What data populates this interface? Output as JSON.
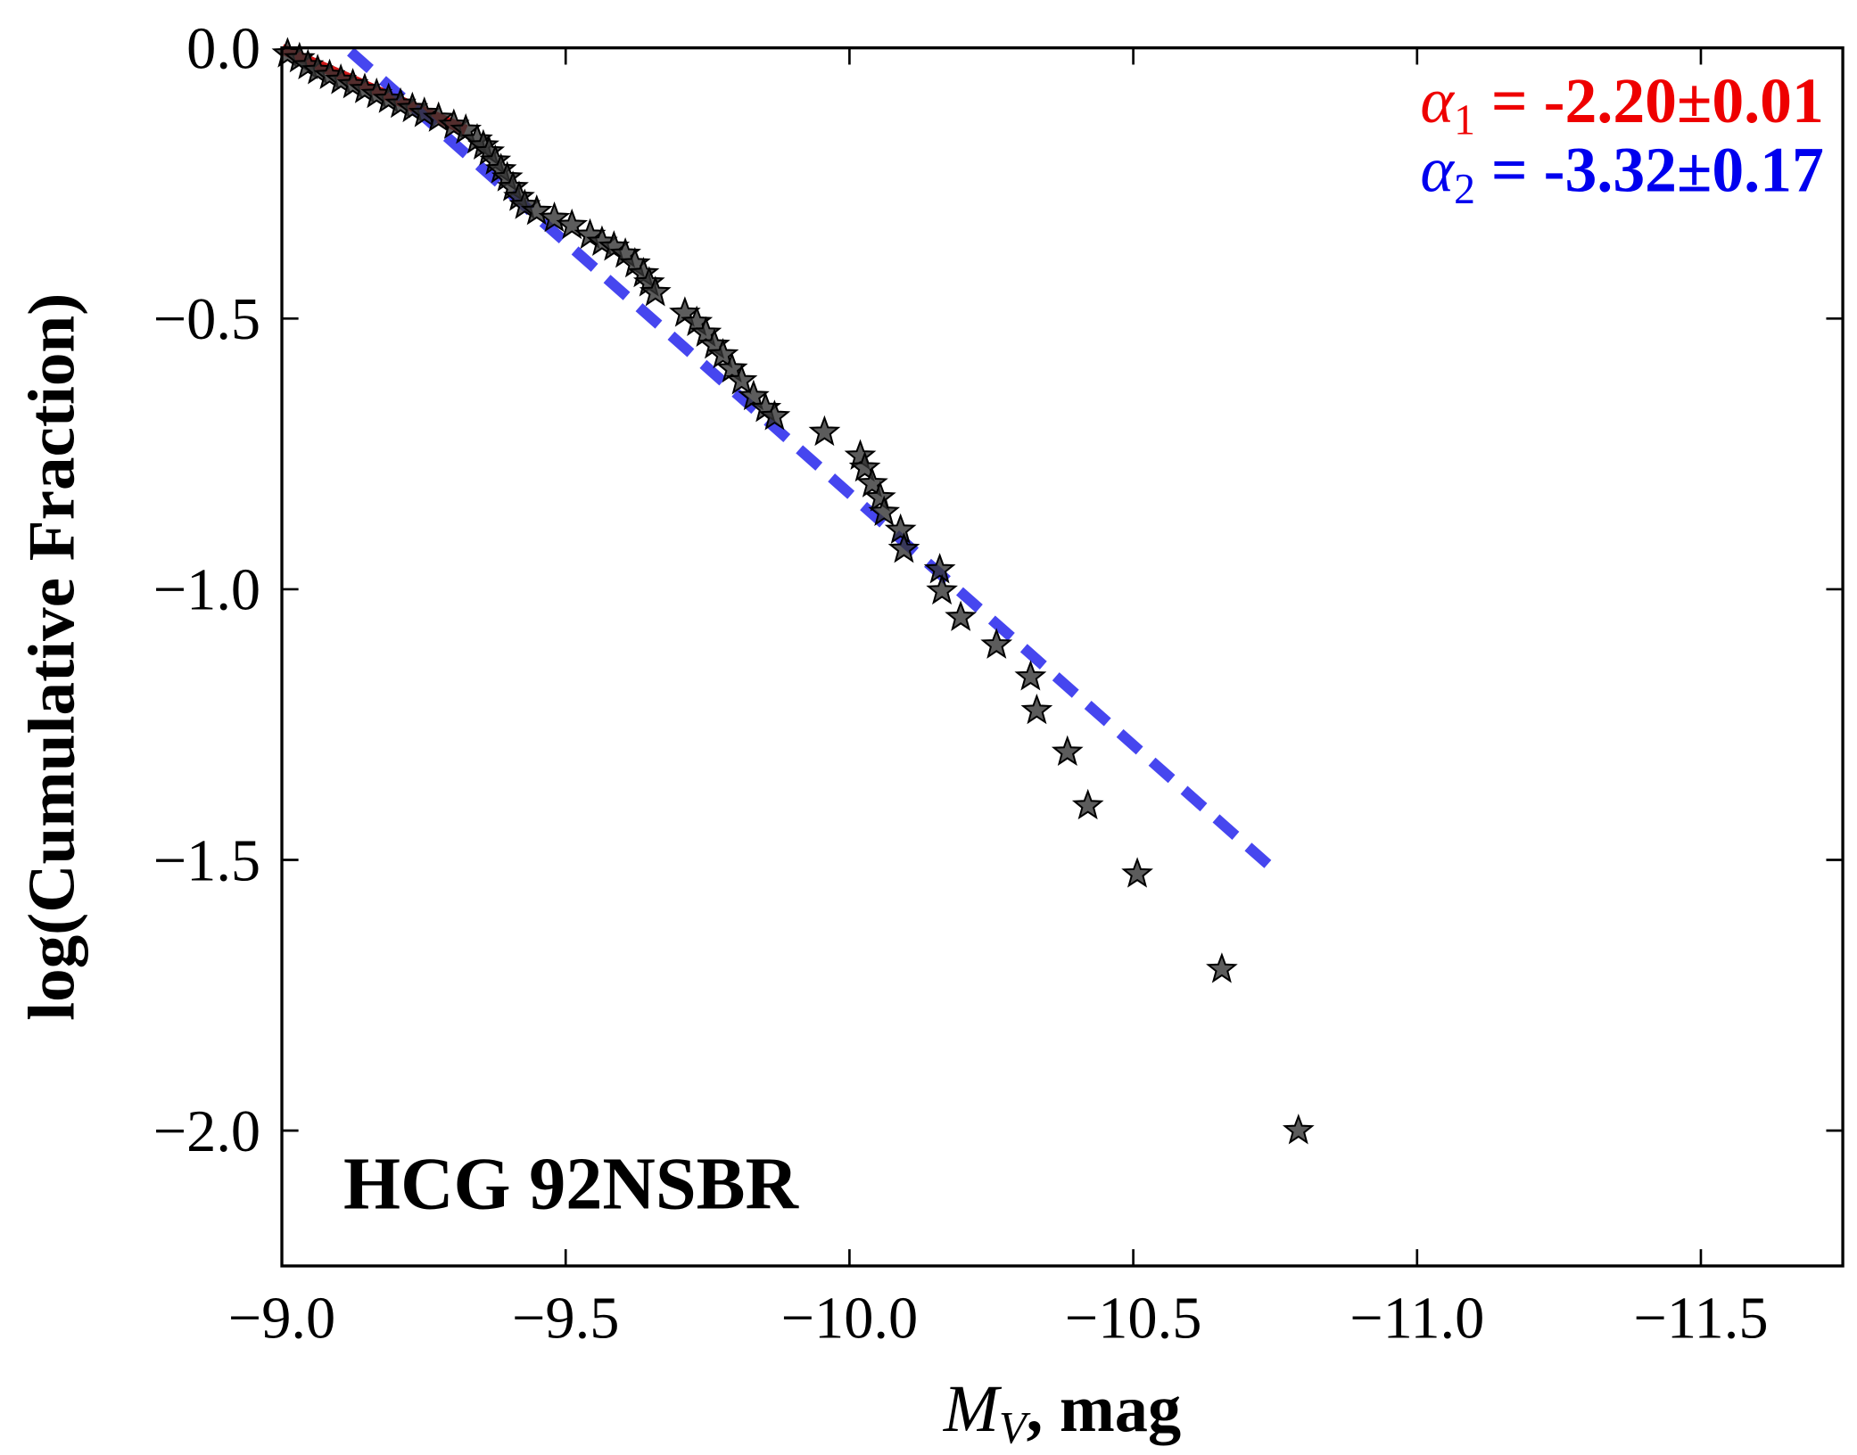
{
  "chart_data": {
    "type": "scatter",
    "xlabel": {
      "symbol": "M",
      "subscript": "V",
      "text": ", mag"
    },
    "ylabel": "log(Cumulative Fraction)",
    "label": "HCG 92NSBR",
    "xlim": [
      -9.0,
      -11.75
    ],
    "ylim": [
      0.0,
      -2.25
    ],
    "xticks": [
      {
        "value": -9.0,
        "label": "−9.0"
      },
      {
        "value": -9.5,
        "label": "−9.5"
      },
      {
        "value": -10.0,
        "label": "−10.0"
      },
      {
        "value": -10.5,
        "label": "−10.5"
      },
      {
        "value": -11.0,
        "label": "−11.0"
      },
      {
        "value": -11.5,
        "label": "−11.5"
      }
    ],
    "yticks": [
      {
        "value": 0.0,
        "label": "0.0"
      },
      {
        "value": -0.5,
        "label": "−0.5"
      },
      {
        "value": -1.0,
        "label": "−1.0"
      },
      {
        "value": -1.5,
        "label": "−1.5"
      },
      {
        "value": -2.0,
        "label": "−2.0"
      }
    ],
    "points": {
      "color": "#333333",
      "x": [
        -9.01,
        -9.031,
        -9.046,
        -9.063,
        -9.084,
        -9.104,
        -9.125,
        -9.146,
        -9.167,
        -9.188,
        -9.209,
        -9.23,
        -9.251,
        -9.276,
        -9.303,
        -9.324,
        -9.344,
        -9.355,
        -9.365,
        -9.376,
        -9.386,
        -9.397,
        -9.407,
        -9.418,
        -9.428,
        -9.449,
        -9.48,
        -9.511,
        -9.543,
        -9.564,
        -9.585,
        -9.605,
        -9.622,
        -9.637,
        -9.647,
        -9.658,
        -9.71,
        -9.731,
        -9.747,
        -9.762,
        -9.777,
        -9.793,
        -9.81,
        -9.831,
        -9.852,
        -9.868,
        -9.956,
        -10.019,
        -10.027,
        -10.04,
        -10.054,
        -10.061,
        -10.09,
        -10.096,
        -10.159,
        -10.163,
        -10.196,
        -10.259,
        -10.319,
        -10.33,
        -10.384,
        -10.42,
        -10.507,
        -10.656,
        -10.791
      ],
      "y": [
        -0.011,
        -0.02,
        -0.033,
        -0.042,
        -0.051,
        -0.06,
        -0.068,
        -0.077,
        -0.086,
        -0.095,
        -0.104,
        -0.112,
        -0.121,
        -0.13,
        -0.143,
        -0.152,
        -0.17,
        -0.181,
        -0.192,
        -0.209,
        -0.225,
        -0.24,
        -0.258,
        -0.276,
        -0.291,
        -0.302,
        -0.315,
        -0.328,
        -0.346,
        -0.359,
        -0.368,
        -0.381,
        -0.399,
        -0.417,
        -0.434,
        -0.452,
        -0.49,
        -0.507,
        -0.527,
        -0.549,
        -0.567,
        -0.593,
        -0.615,
        -0.644,
        -0.666,
        -0.681,
        -0.71,
        -0.754,
        -0.776,
        -0.805,
        -0.831,
        -0.858,
        -0.891,
        -0.926,
        -0.964,
        -1.003,
        -1.052,
        -1.103,
        -1.162,
        -1.224,
        -1.301,
        -1.4,
        -1.526,
        -1.702,
        -2.0
      ]
    },
    "fits": [
      {
        "color": "#cc0000",
        "dashed": false,
        "x": [
          -9.0,
          -9.324
        ],
        "y": [
          -0.002,
          -0.152
        ]
      },
      {
        "color": "#3333ee",
        "dashed": true,
        "x": [
          -9.121,
          -10.749
        ],
        "y": [
          -0.007,
          -1.519
        ]
      }
    ],
    "annotations": [
      {
        "symbol": "α",
        "subscript": "1",
        "text": " = -2.20±0.01",
        "color": "#ee0000"
      },
      {
        "symbol": "α",
        "subscript": "2",
        "text": " = -3.32±0.17",
        "color": "#0000ee"
      }
    ]
  }
}
